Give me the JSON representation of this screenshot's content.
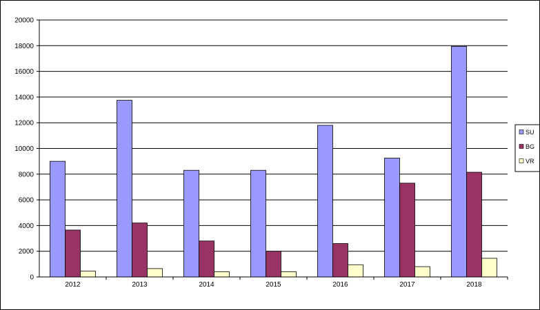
{
  "chart_data": {
    "type": "bar",
    "categories": [
      "2012",
      "2013",
      "2014",
      "2015",
      "2016",
      "2017",
      "2018"
    ],
    "series": [
      {
        "name": "SU",
        "color": "#9999ff",
        "values": [
          9000,
          13750,
          8300,
          8300,
          11800,
          9250,
          17950
        ]
      },
      {
        "name": "BG",
        "color": "#993366",
        "values": [
          3650,
          4200,
          2800,
          2000,
          2600,
          7300,
          8150
        ]
      },
      {
        "name": "VR",
        "color": "#ffffcc",
        "values": [
          450,
          650,
          400,
          400,
          950,
          800,
          1450
        ]
      }
    ],
    "ylim": [
      0,
      20000
    ],
    "yticks": [
      "0",
      "2000",
      "4000",
      "6000",
      "8000",
      "10000",
      "12000",
      "14000",
      "16000",
      "18000",
      "20000"
    ],
    "title": "",
    "xlabel": "",
    "ylabel": "",
    "grid": true,
    "legend": "right"
  }
}
